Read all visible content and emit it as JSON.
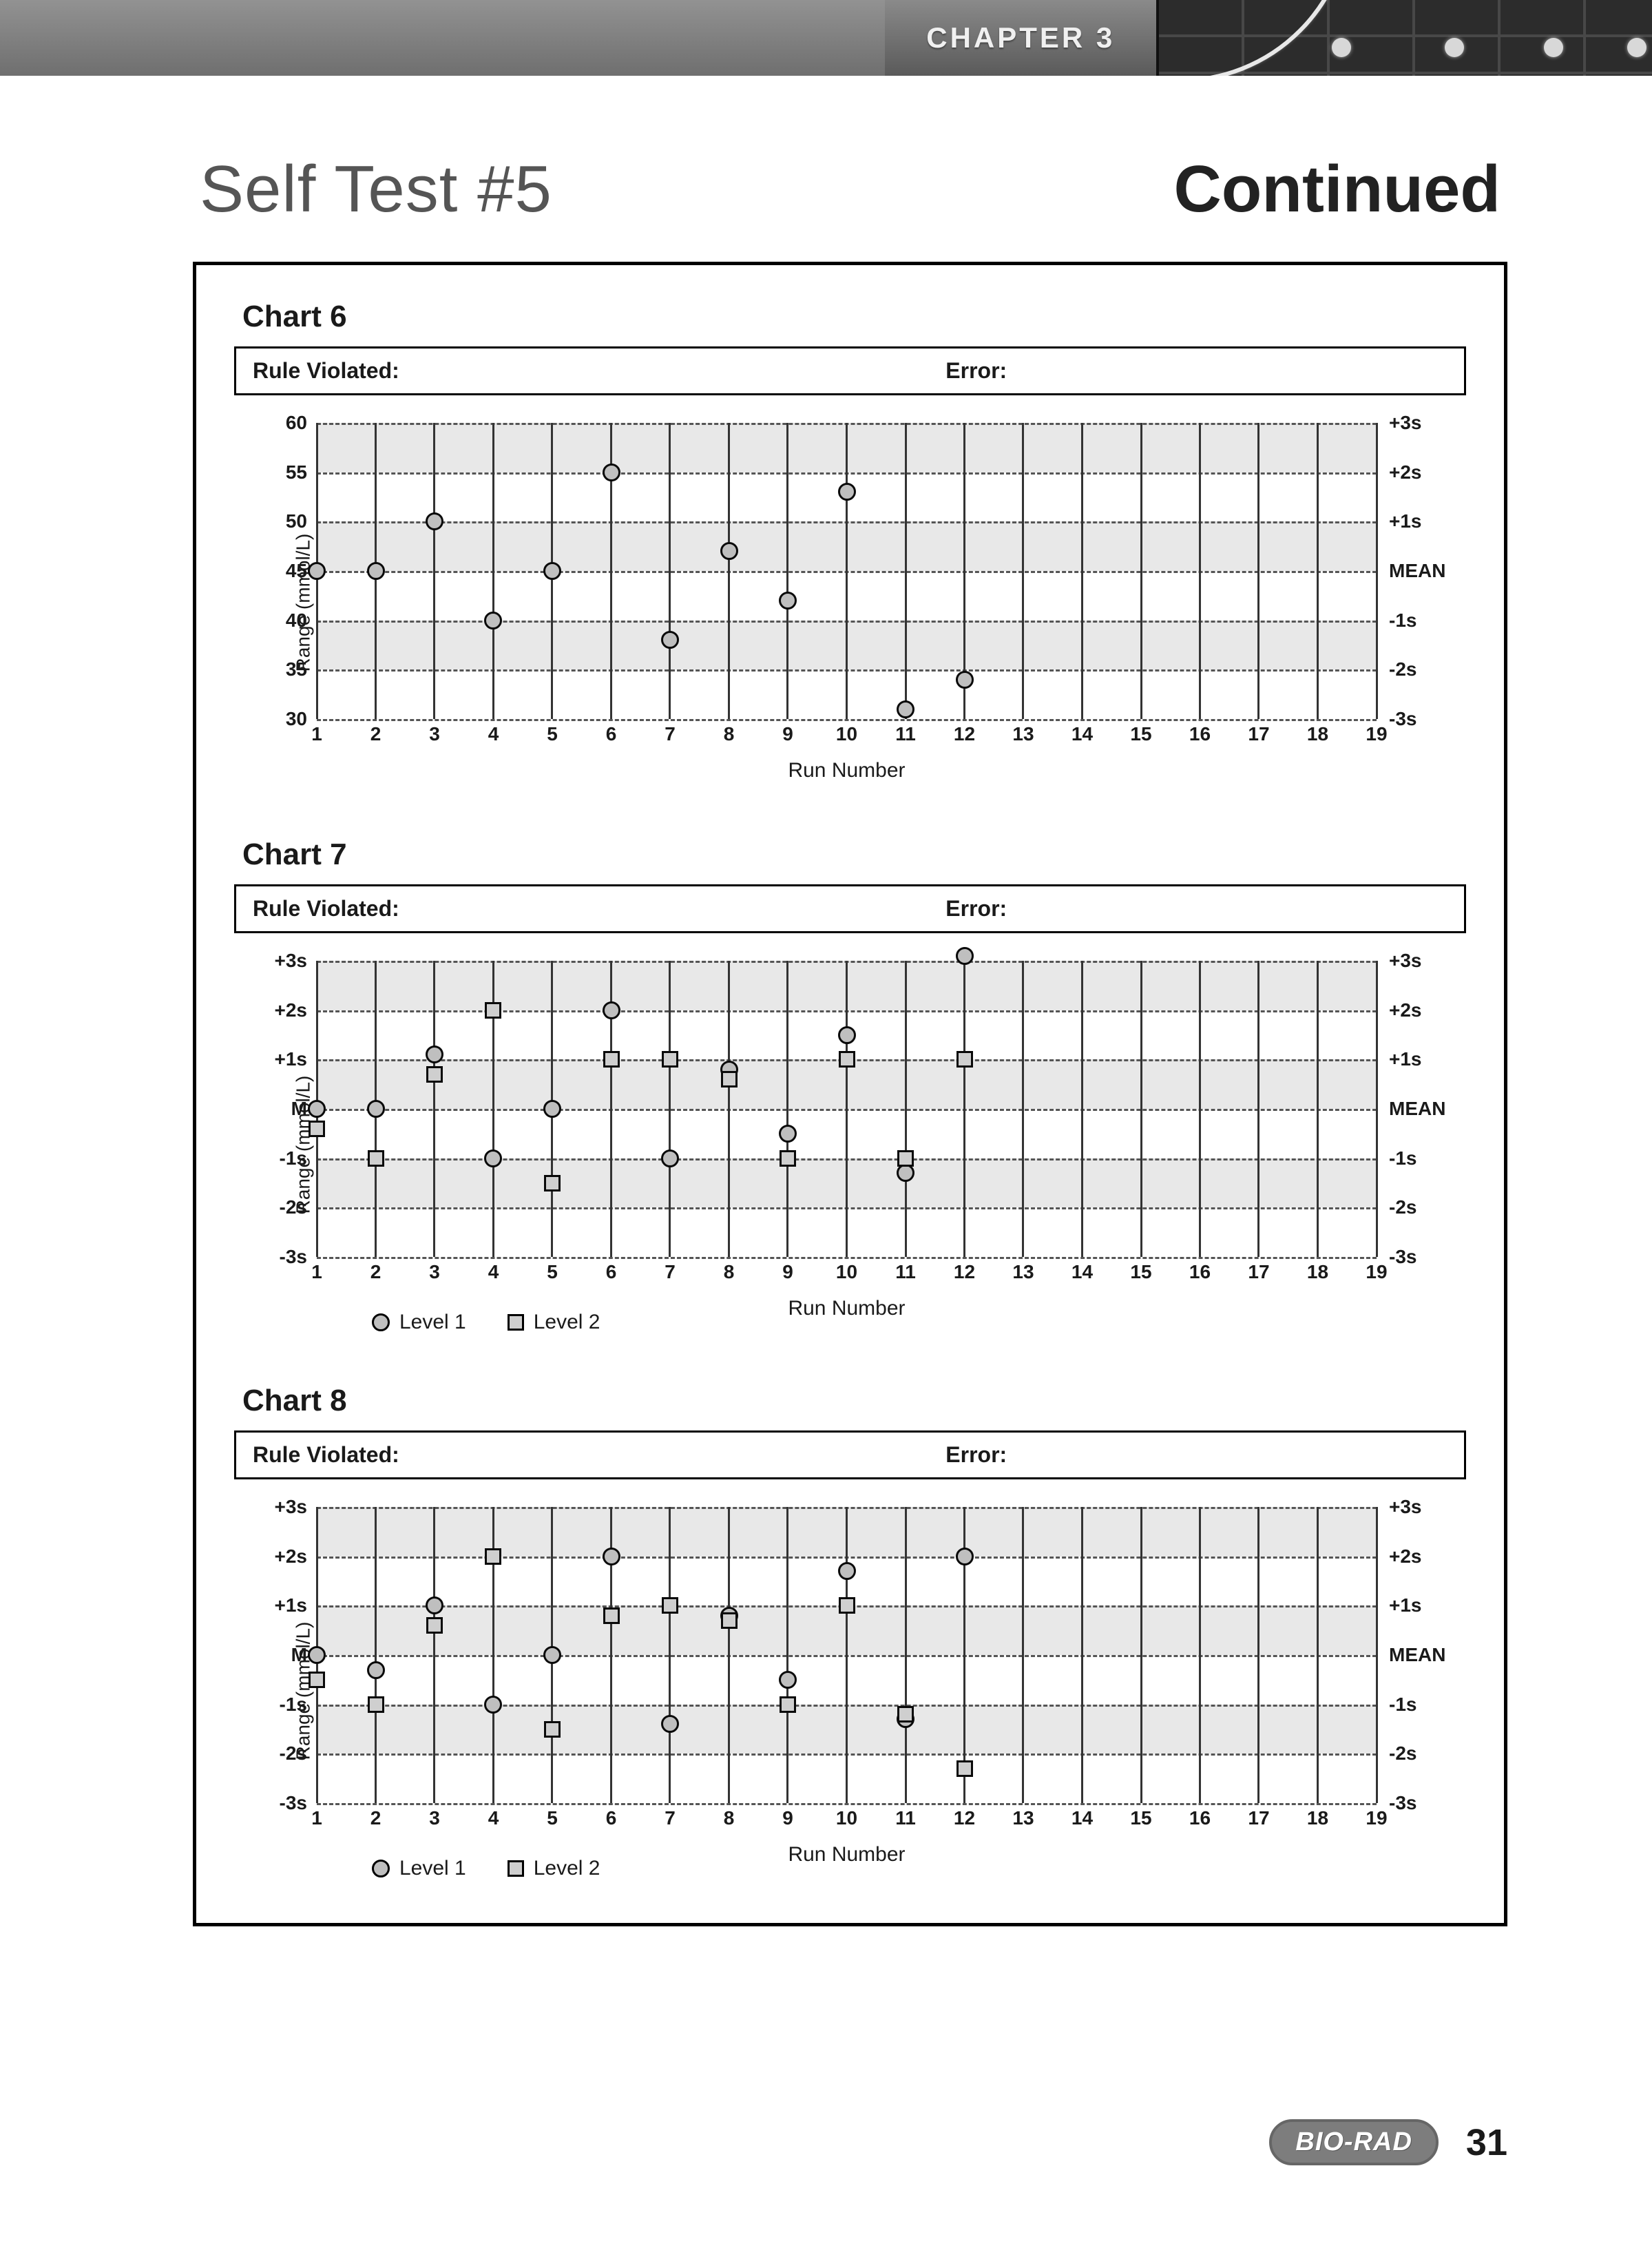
{
  "banner": {
    "chapter_label": "CHAPTER 3",
    "dot_positions_pct": [
      35,
      58,
      78,
      95
    ],
    "band_gray": "#808080",
    "band_dark": "#2c2c2c"
  },
  "headline": {
    "left": "Self Test #5",
    "right": "Continued"
  },
  "common": {
    "rule_label": "Rule Violated:",
    "error_label": "Error:",
    "ylabel": "Range (mmol/L)",
    "xlabel": "Run Number",
    "x_min": 1,
    "x_max": 19,
    "right_labels": [
      "+3s",
      "+2s",
      "+1s",
      "MEAN",
      "-1s",
      "-2s",
      "-3s"
    ],
    "grid_color": "#555555",
    "band_color": "#e8e8e8",
    "circle_fill": "#bfbfbf",
    "square_fill": "#cfcfcf",
    "marker_stroke": "#0a0a0a",
    "legend_level1": "Level 1",
    "legend_level2": "Level 2"
  },
  "charts": [
    {
      "id": "chart6",
      "title": "Chart 6",
      "y_mode": "numeric",
      "y_min": 30,
      "y_max": 60,
      "y_step": 5,
      "mean": 45,
      "band_rows": [
        [
          55,
          60
        ],
        [
          45,
          50
        ],
        [
          35,
          40
        ]
      ],
      "has_legend": false,
      "series": [
        {
          "marker": "circle",
          "points": [
            {
              "x": 1,
              "y": 45
            },
            {
              "x": 2,
              "y": 45
            },
            {
              "x": 3,
              "y": 50
            },
            {
              "x": 4,
              "y": 40
            },
            {
              "x": 5,
              "y": 45
            },
            {
              "x": 6,
              "y": 55
            },
            {
              "x": 7,
              "y": 38
            },
            {
              "x": 8,
              "y": 47
            },
            {
              "x": 9,
              "y": 42
            },
            {
              "x": 10,
              "y": 53
            },
            {
              "x": 11,
              "y": 31
            },
            {
              "x": 12,
              "y": 34
            }
          ]
        }
      ]
    },
    {
      "id": "chart7",
      "title": "Chart 7",
      "y_mode": "sigma",
      "y_min": -3,
      "y_max": 3,
      "y_step": 1,
      "mean": 0,
      "y_ticks_sigma": [
        "+3s",
        "+2s",
        "+1s",
        "M",
        "-1s",
        "-2s",
        "-3s"
      ],
      "band_rows": [
        [
          2,
          3
        ],
        [
          0,
          1
        ],
        [
          -2,
          -1
        ]
      ],
      "has_legend": true,
      "series": [
        {
          "marker": "circle",
          "points": [
            {
              "x": 1,
              "y": 0
            },
            {
              "x": 2,
              "y": 0
            },
            {
              "x": 3,
              "y": 1.1
            },
            {
              "x": 4,
              "y": -1
            },
            {
              "x": 5,
              "y": 0
            },
            {
              "x": 6,
              "y": 2
            },
            {
              "x": 7,
              "y": -1
            },
            {
              "x": 8,
              "y": 0.8
            },
            {
              "x": 9,
              "y": -0.5
            },
            {
              "x": 10,
              "y": 1.5
            },
            {
              "x": 11,
              "y": -1.3
            },
            {
              "x": 12,
              "y": 3.1
            }
          ]
        },
        {
          "marker": "square",
          "points": [
            {
              "x": 1,
              "y": -0.4
            },
            {
              "x": 2,
              "y": -1
            },
            {
              "x": 3,
              "y": 0.7
            },
            {
              "x": 4,
              "y": 2
            },
            {
              "x": 5,
              "y": -1.5
            },
            {
              "x": 6,
              "y": 1
            },
            {
              "x": 7,
              "y": 1
            },
            {
              "x": 8,
              "y": 0.6
            },
            {
              "x": 9,
              "y": -1
            },
            {
              "x": 10,
              "y": 1
            },
            {
              "x": 11,
              "y": -1
            },
            {
              "x": 12,
              "y": 1
            }
          ]
        }
      ]
    },
    {
      "id": "chart8",
      "title": "Chart 8",
      "y_mode": "sigma",
      "y_min": -3,
      "y_max": 3,
      "y_step": 1,
      "mean": 0,
      "y_ticks_sigma": [
        "+3s",
        "+2s",
        "+1s",
        "M",
        "-1s",
        "-2s",
        "-3s"
      ],
      "band_rows": [
        [
          2,
          3
        ],
        [
          0,
          1
        ],
        [
          -2,
          -1
        ]
      ],
      "has_legend": true,
      "series": [
        {
          "marker": "circle",
          "points": [
            {
              "x": 1,
              "y": 0
            },
            {
              "x": 2,
              "y": -0.3
            },
            {
              "x": 3,
              "y": 1
            },
            {
              "x": 4,
              "y": -1
            },
            {
              "x": 5,
              "y": 0
            },
            {
              "x": 6,
              "y": 2
            },
            {
              "x": 7,
              "y": -1.4
            },
            {
              "x": 8,
              "y": 0.8
            },
            {
              "x": 9,
              "y": -0.5
            },
            {
              "x": 10,
              "y": 1.7
            },
            {
              "x": 11,
              "y": -1.3
            },
            {
              "x": 12,
              "y": 2
            }
          ]
        },
        {
          "marker": "square",
          "points": [
            {
              "x": 1,
              "y": -0.5
            },
            {
              "x": 2,
              "y": -1
            },
            {
              "x": 3,
              "y": 0.6
            },
            {
              "x": 4,
              "y": 2
            },
            {
              "x": 5,
              "y": -1.5
            },
            {
              "x": 6,
              "y": 0.8
            },
            {
              "x": 7,
              "y": 1
            },
            {
              "x": 8,
              "y": 0.7
            },
            {
              "x": 9,
              "y": -1
            },
            {
              "x": 10,
              "y": 1
            },
            {
              "x": 11,
              "y": -1.2
            },
            {
              "x": 12,
              "y": -2.3
            }
          ]
        }
      ]
    }
  ],
  "footer": {
    "brand": "BIO-RAD",
    "page_number": "31"
  }
}
